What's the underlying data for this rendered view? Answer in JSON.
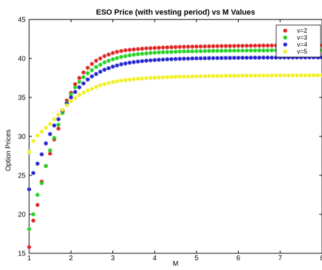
{
  "chart_data": {
    "type": "scatter",
    "title": "ESO Price (with vesting period) vs M Values",
    "xlabel": "M",
    "ylabel": "Option Prices",
    "xlim": [
      1,
      8
    ],
    "ylim": [
      15,
      45
    ],
    "x_ticks": [
      "1",
      "2",
      "3",
      "4",
      "5",
      "6",
      "7",
      "8"
    ],
    "y_ticks": [
      "15",
      "20",
      "25",
      "30",
      "35",
      "40",
      "45"
    ],
    "grid": false,
    "legend_position": "top-right",
    "marker": "asterisk",
    "x_start": 1.0,
    "x_step": 0.1,
    "series": [
      {
        "name": "v=2",
        "color": "#e02020",
        "values": [
          15.8,
          19.2,
          21.2,
          24.2,
          26.2,
          27.8,
          29.6,
          31.0,
          33.2,
          34.6,
          35.6,
          36.7,
          37.5,
          38.2,
          38.8,
          39.3,
          39.7,
          40.0,
          40.3,
          40.5,
          40.7,
          40.85,
          40.95,
          41.05,
          41.1,
          41.15,
          41.2,
          41.25,
          41.3,
          41.32,
          41.35,
          41.37,
          41.4,
          41.42,
          41.44,
          41.46,
          41.48,
          41.5,
          41.51,
          41.52,
          41.53,
          41.54,
          41.55,
          41.56,
          41.57,
          41.58,
          41.59,
          41.6,
          41.6,
          41.61,
          41.62,
          41.62,
          41.63,
          41.63,
          41.64,
          41.64,
          41.65,
          41.65,
          41.66,
          41.66,
          41.66,
          41.67,
          41.67,
          41.67,
          41.67,
          41.68,
          41.68,
          41.68,
          41.68,
          41.68,
          41.69
        ]
      },
      {
        "name": "v=3",
        "color": "#20d020",
        "values": [
          18.1,
          20.0,
          22.5,
          24.0,
          26.2,
          28.2,
          29.8,
          31.5,
          33.0,
          34.3,
          35.4,
          36.3,
          37.0,
          37.6,
          38.1,
          38.5,
          38.9,
          39.2,
          39.5,
          39.7,
          39.9,
          40.05,
          40.2,
          40.3,
          40.4,
          40.48,
          40.55,
          40.6,
          40.65,
          40.7,
          40.74,
          40.77,
          40.8,
          40.82,
          40.84,
          40.86,
          40.88,
          40.9,
          40.91,
          40.92,
          40.93,
          40.94,
          40.95,
          40.96,
          40.97,
          40.98,
          40.98,
          40.99,
          41.0,
          41.0,
          41.01,
          41.01,
          41.02,
          41.02,
          41.02,
          41.03,
          41.03,
          41.03,
          41.04,
          41.04,
          41.04,
          41.04,
          41.05,
          41.05,
          41.05,
          41.05,
          41.05,
          41.06,
          41.06,
          41.06,
          41.06
        ]
      },
      {
        "name": "v=4",
        "color": "#2020d0",
        "values": [
          23.2,
          25.3,
          26.5,
          27.7,
          29.1,
          30.3,
          31.4,
          32.2,
          33.3,
          34.2,
          35.0,
          35.7,
          36.3,
          36.8,
          37.3,
          37.7,
          38.0,
          38.3,
          38.55,
          38.75,
          38.95,
          39.1,
          39.25,
          39.35,
          39.45,
          39.53,
          39.6,
          39.66,
          39.71,
          39.76,
          39.8,
          39.83,
          39.86,
          39.89,
          39.91,
          39.93,
          39.95,
          39.97,
          39.98,
          40.0,
          40.01,
          40.02,
          40.03,
          40.04,
          40.05,
          40.05,
          40.06,
          40.07,
          40.07,
          40.08,
          40.08,
          40.09,
          40.09,
          40.1,
          40.1,
          40.1,
          40.11,
          40.11,
          40.11,
          40.11,
          40.12,
          40.12,
          40.12,
          40.12,
          40.12,
          40.13,
          40.13,
          40.13,
          40.13,
          40.13,
          40.13
        ]
      },
      {
        "name": "v=5",
        "color": "#f0f020",
        "values": [
          28.0,
          29.4,
          30.1,
          30.6,
          31.1,
          31.6,
          32.2,
          32.8,
          33.4,
          34.0,
          34.5,
          34.9,
          35.3,
          35.6,
          35.9,
          36.1,
          36.35,
          36.55,
          36.7,
          36.85,
          36.97,
          37.07,
          37.15,
          37.22,
          37.28,
          37.34,
          37.39,
          37.43,
          37.47,
          37.5,
          37.53,
          37.56,
          37.58,
          37.6,
          37.62,
          37.64,
          37.66,
          37.67,
          37.68,
          37.7,
          37.71,
          37.72,
          37.73,
          37.74,
          37.75,
          37.75,
          37.76,
          37.77,
          37.77,
          37.78,
          37.78,
          37.79,
          37.79,
          37.8,
          37.8,
          37.8,
          37.81,
          37.81,
          37.81,
          37.82,
          37.82,
          37.82,
          37.82,
          37.83,
          37.83,
          37.83,
          37.83,
          37.83,
          37.84,
          37.84,
          37.84
        ]
      }
    ]
  }
}
